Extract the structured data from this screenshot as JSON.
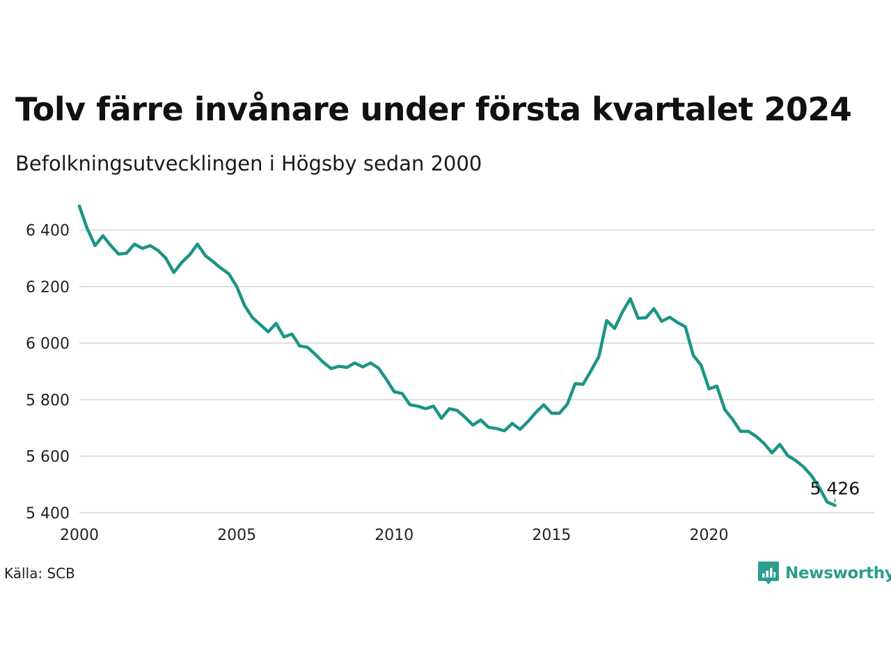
{
  "title": "Tolv färre invånare under första kvartalet 2024",
  "subtitle": "Befolkningsutvecklingen i Högsby sedan 2000",
  "source": "Källa: SCB",
  "brand": {
    "name": "Newsworthy",
    "icon": "newsworthy-logo-icon",
    "color": "#2a9d8f"
  },
  "colors": {
    "line": "#1a9585",
    "grid": "#dddddd"
  },
  "chart_data": {
    "type": "line",
    "title": "Tolv färre invånare under första kvartalet 2024",
    "subtitle": "Befolkningsutvecklingen i Högsby sedan 2000",
    "xlabel": "",
    "ylabel": "",
    "xlim": [
      2000,
      2025.25
    ],
    "ylim": [
      5380,
      6500
    ],
    "x_ticks": [
      2000,
      2005,
      2010,
      2015,
      2020
    ],
    "x_tick_labels": [
      "2000",
      "2005",
      "2010",
      "2015",
      "2020"
    ],
    "y_ticks": [
      5400,
      5600,
      5800,
      6000,
      6200,
      6400
    ],
    "y_tick_labels": [
      "5 400",
      "5 600",
      "5 800",
      "6 000",
      "6 200",
      "6 400"
    ],
    "grid": "horizontal",
    "end_label": "5 426",
    "series": [
      {
        "x": [
          2000.0,
          2000.25,
          2000.5,
          2000.75,
          2001.0,
          2001.25,
          2001.5,
          2001.75,
          2002.0,
          2002.25,
          2002.5,
          2002.75,
          2003.0,
          2003.25,
          2003.5,
          2003.75,
          2004.0,
          2004.25,
          2004.5,
          2004.75,
          2005.0,
          2005.25,
          2005.5,
          2005.75,
          2006.0,
          2006.25,
          2006.5,
          2006.75,
          2007.0,
          2007.25,
          2007.5,
          2007.75,
          2008.0,
          2008.25,
          2008.5,
          2008.75,
          2009.0,
          2009.25,
          2009.5,
          2009.75,
          2010.0,
          2010.25,
          2010.5,
          2010.75,
          2011.0,
          2011.25,
          2011.5,
          2011.75,
          2012.0,
          2012.25,
          2012.5,
          2012.75,
          2013.0,
          2013.25,
          2013.5,
          2013.75,
          2014.0,
          2014.25,
          2014.5,
          2014.75,
          2015.0,
          2015.25,
          2015.5,
          2015.75,
          2016.0,
          2016.25,
          2016.5,
          2016.75,
          2017.0,
          2017.25,
          2017.5,
          2017.75,
          2018.0,
          2018.25,
          2018.5,
          2018.75,
          2019.0,
          2019.25,
          2019.5,
          2019.75,
          2020.0,
          2020.25,
          2020.5,
          2020.75,
          2021.0,
          2021.25,
          2021.5,
          2021.75,
          2022.0,
          2022.25,
          2022.5,
          2022.75,
          2023.0,
          2023.25,
          2023.5,
          2023.75,
          2024.0
        ],
        "values": [
          6485,
          6405,
          6345,
          6380,
          6345,
          6315,
          6318,
          6350,
          6335,
          6345,
          6328,
          6300,
          6250,
          6285,
          6312,
          6350,
          6310,
          6288,
          6265,
          6245,
          6200,
          6133,
          6090,
          6065,
          6040,
          6070,
          6022,
          6032,
          5990,
          5985,
          5960,
          5932,
          5910,
          5918,
          5914,
          5930,
          5916,
          5930,
          5912,
          5872,
          5828,
          5822,
          5782,
          5777,
          5768,
          5777,
          5734,
          5768,
          5762,
          5738,
          5710,
          5728,
          5702,
          5698,
          5690,
          5716,
          5695,
          5723,
          5755,
          5782,
          5752,
          5752,
          5784,
          5857,
          5854,
          5902,
          5952,
          6080,
          6052,
          6110,
          6157,
          6088,
          6090,
          6122,
          6077,
          6092,
          6073,
          6058,
          5957,
          5922,
          5838,
          5848,
          5765,
          5730,
          5688,
          5688,
          5670,
          5645,
          5612,
          5642,
          5602,
          5585,
          5563,
          5532,
          5490,
          5438,
          5426
        ]
      }
    ]
  }
}
